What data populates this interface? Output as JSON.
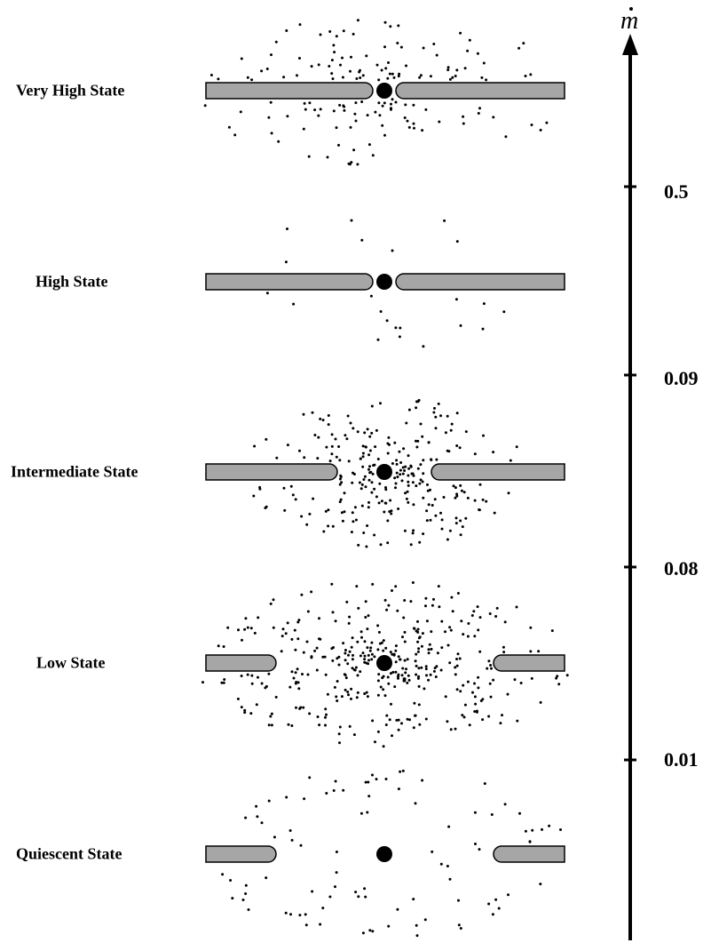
{
  "axis": {
    "label": "m",
    "label_has_dot_accent": true,
    "ticks": [
      "0.5",
      "0.09",
      "0.08",
      "0.01"
    ]
  },
  "states": [
    {
      "label": "Very High State",
      "disk_inner_gap": "small",
      "corona_density": "moderate"
    },
    {
      "label": "High State",
      "disk_inner_gap": "small",
      "corona_density": "sparse"
    },
    {
      "label": "Intermediate State",
      "disk_inner_gap": "medium",
      "corona_density": "dense"
    },
    {
      "label": "Low State",
      "disk_inner_gap": "large",
      "corona_density": "very dense"
    },
    {
      "label": "Quiescent State",
      "disk_inner_gap": "large",
      "corona_density": "sparse"
    }
  ],
  "colors": {
    "disk_fill": "#a6a6a6",
    "disk_stroke": "#000000",
    "compact_object": "#000000",
    "corona_dots": "#000000",
    "axis": "#000000"
  }
}
